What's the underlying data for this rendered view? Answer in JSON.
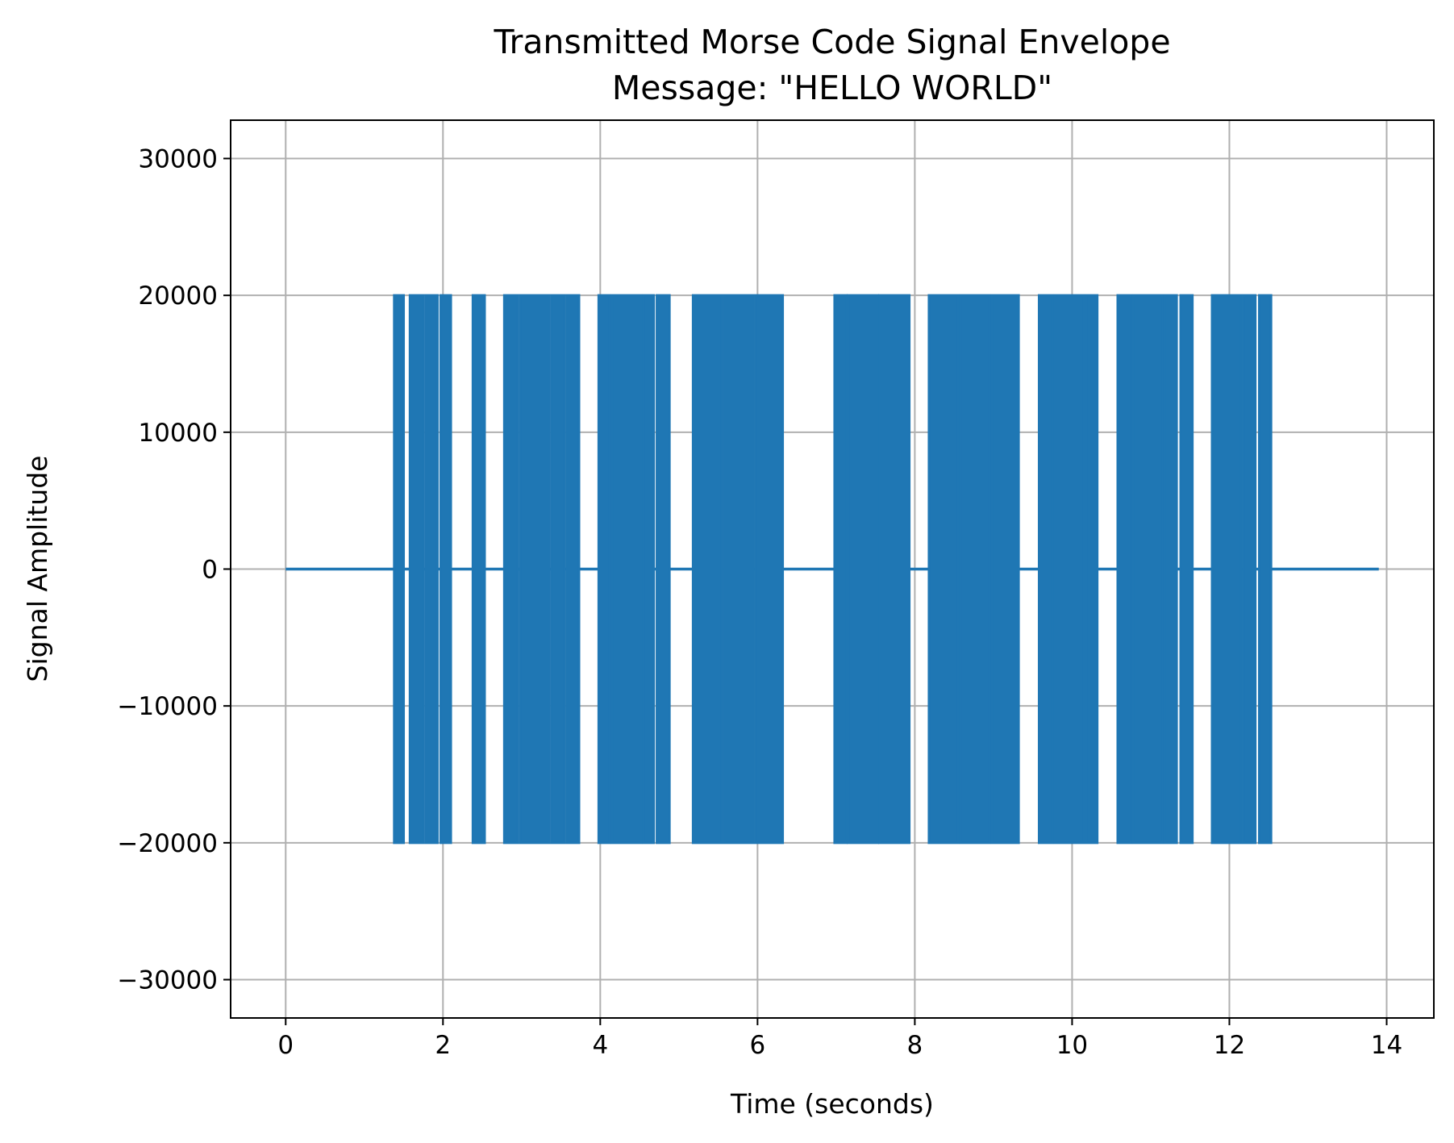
{
  "chart_data": {
    "type": "line",
    "title": "Transmitted Morse Code Signal Envelope",
    "subtitle": "Message: \"HELLO WORLD\"",
    "xlabel": "Time (seconds)",
    "ylabel": "Signal Amplitude",
    "xlim": [
      -0.7,
      14.6
    ],
    "ylim": [
      -32800,
      32800
    ],
    "xticks": [
      0,
      2,
      4,
      6,
      8,
      10,
      12,
      14
    ],
    "xtick_labels": [
      "0",
      "2",
      "4",
      "6",
      "8",
      "10",
      "12",
      "14"
    ],
    "yticks": [
      30000,
      20000,
      10000,
      0,
      -10000,
      -20000,
      -30000
    ],
    "ytick_labels": [
      "30000",
      "20000",
      "10000",
      "0",
      "−10000",
      "−20000",
      "−30000"
    ],
    "grid": true,
    "line_color": "#1f77b4",
    "baseline": {
      "x_start": 0,
      "x_end": 13.9,
      "y": 0
    },
    "amplitude": 20000,
    "bursts": [
      [
        1.38,
        1.5
      ],
      [
        1.58,
        1.75
      ],
      [
        1.78,
        1.93
      ],
      [
        1.97,
        2.1
      ],
      [
        2.38,
        2.53
      ],
      [
        2.78,
        2.95
      ],
      [
        2.98,
        3.35
      ],
      [
        3.38,
        3.55
      ],
      [
        3.58,
        3.73
      ],
      [
        3.98,
        4.12
      ],
      [
        4.15,
        4.52
      ],
      [
        4.55,
        4.68
      ],
      [
        4.72,
        4.88
      ],
      [
        5.18,
        5.55
      ],
      [
        5.58,
        5.95
      ],
      [
        5.98,
        6.32
      ],
      [
        6.98,
        7.13
      ],
      [
        7.15,
        7.53
      ],
      [
        7.55,
        7.93
      ],
      [
        8.18,
        8.55
      ],
      [
        8.58,
        8.95
      ],
      [
        8.98,
        9.32
      ],
      [
        9.58,
        9.75
      ],
      [
        9.78,
        10.15
      ],
      [
        10.18,
        10.32
      ],
      [
        10.58,
        10.75
      ],
      [
        10.78,
        11.15
      ],
      [
        11.18,
        11.33
      ],
      [
        11.38,
        11.53
      ],
      [
        11.78,
        12.15
      ],
      [
        12.18,
        12.33
      ],
      [
        12.38,
        12.53
      ]
    ]
  }
}
